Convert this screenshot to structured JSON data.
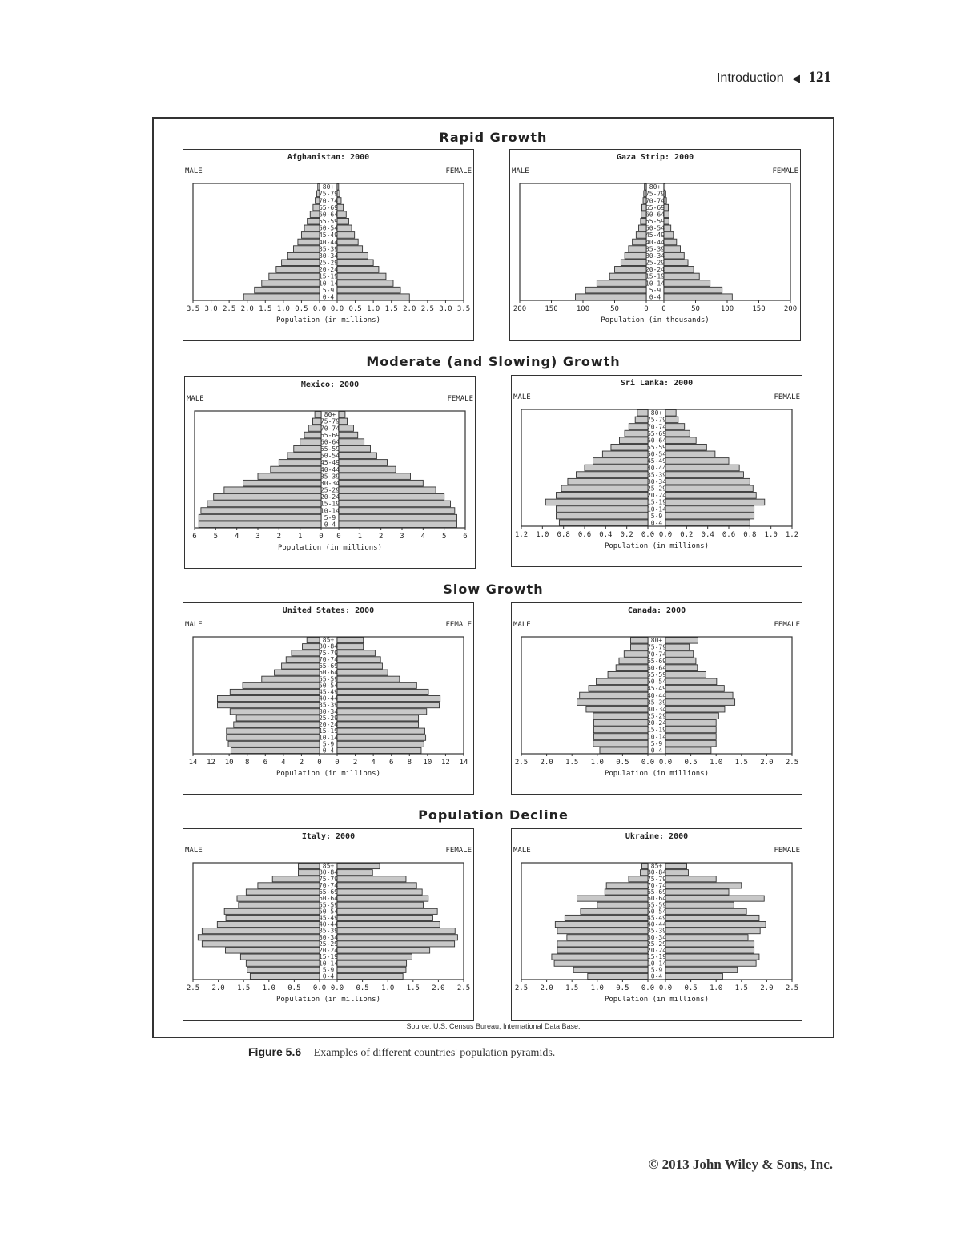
{
  "page": {
    "running_head": "Introduction",
    "page_number": "121",
    "copyright": "© 2013 John Wiley & Sons, Inc."
  },
  "figure": {
    "source": "Source: U.S. Census Bureau, International Data Base.",
    "caption_label": "Figure 5.6",
    "caption_text": "Examples of different countries' population pyramids.",
    "sections": [
      {
        "title": "Rapid Growth"
      },
      {
        "title": "Moderate (and Slowing) Growth"
      },
      {
        "title": "Slow Growth"
      },
      {
        "title": "Population Decline"
      }
    ],
    "male_label": "MALE",
    "female_label": "FEMALE"
  },
  "chart_data": [
    {
      "type": "bar",
      "title": "Afghanistan: 2000",
      "section": "Rapid Growth",
      "xlabel": "Population (in millions)",
      "xlim": [
        0,
        3.5
      ],
      "ticks": [
        "3.5",
        "3.0",
        "2.5",
        "2.0",
        "1.5",
        "1.0",
        "0.5",
        "0.0"
      ],
      "categories": [
        "0-4",
        "5-9",
        "10-14",
        "15-19",
        "20-24",
        "25-29",
        "30-34",
        "35-39",
        "40-44",
        "45-49",
        "50-54",
        "55-59",
        "60-64",
        "65-69",
        "70-74",
        "75-79",
        "80+"
      ],
      "series": [
        {
          "name": "Male",
          "values": [
            2.1,
            1.8,
            1.6,
            1.4,
            1.2,
            1.05,
            0.88,
            0.72,
            0.6,
            0.5,
            0.42,
            0.34,
            0.26,
            0.18,
            0.12,
            0.08,
            0.05
          ]
        },
        {
          "name": "Female",
          "values": [
            2.0,
            1.75,
            1.55,
            1.35,
            1.15,
            1.0,
            0.85,
            0.7,
            0.58,
            0.48,
            0.4,
            0.32,
            0.25,
            0.17,
            0.11,
            0.07,
            0.04
          ]
        }
      ]
    },
    {
      "type": "bar",
      "title": "Gaza Strip: 2000",
      "section": "Rapid Growth",
      "xlabel": "Population (in thousands)",
      "xlim": [
        0,
        200
      ],
      "ticks": [
        "200",
        "150",
        "100",
        "50",
        "0"
      ],
      "categories": [
        "0-4",
        "5-9",
        "10-14",
        "15-19",
        "20-24",
        "25-29",
        "30-34",
        "35-39",
        "40-44",
        "45-49",
        "50-54",
        "55-59",
        "60-64",
        "65-69",
        "70-74",
        "75-79",
        "80+"
      ],
      "series": [
        {
          "name": "Male",
          "values": [
            112,
            96,
            78,
            58,
            50,
            40,
            34,
            28,
            22,
            16,
            12,
            9,
            8,
            7,
            5,
            4,
            3
          ]
        },
        {
          "name": "Female",
          "values": [
            108,
            92,
            73,
            56,
            47,
            38,
            32,
            26,
            20,
            15,
            11,
            8,
            8,
            7,
            4,
            3,
            2
          ]
        }
      ]
    },
    {
      "type": "bar",
      "title": "Mexico: 2000",
      "section": "Moderate (and Slowing) Growth",
      "xlabel": "Population (in millions)",
      "xlim": [
        0,
        6
      ],
      "ticks": [
        "6",
        "5",
        "4",
        "3",
        "2",
        "1",
        "0"
      ],
      "categories": [
        "0-4",
        "5-9",
        "10-14",
        "15-19",
        "20-24",
        "25-29",
        "30-34",
        "35-39",
        "40-44",
        "45-49",
        "50-54",
        "55-59",
        "60-64",
        "65-69",
        "70-74",
        "75-79",
        "80+"
      ],
      "series": [
        {
          "name": "Male",
          "values": [
            5.8,
            5.8,
            5.7,
            5.4,
            5.1,
            4.6,
            3.7,
            3.0,
            2.4,
            2.0,
            1.6,
            1.3,
            1.0,
            0.8,
            0.6,
            0.4,
            0.3
          ]
        },
        {
          "name": "Female",
          "values": [
            5.6,
            5.6,
            5.5,
            5.3,
            5.0,
            4.6,
            4.0,
            3.4,
            2.7,
            2.3,
            1.8,
            1.5,
            1.2,
            0.9,
            0.7,
            0.4,
            0.3
          ]
        }
      ]
    },
    {
      "type": "bar",
      "title": "Sri Lanka: 2000",
      "section": "Moderate (and Slowing) Growth",
      "xlabel": "Population (in millions)",
      "xlim": [
        0,
        1.2
      ],
      "ticks": [
        "1.2",
        "1.0",
        "0.8",
        "0.6",
        "0.4",
        "0.2",
        "0.0"
      ],
      "categories": [
        "0-4",
        "5-9",
        "10-14",
        "15-19",
        "20-24",
        "25-29",
        "30-34",
        "35-39",
        "40-44",
        "45-49",
        "50-54",
        "55-59",
        "60-64",
        "65-69",
        "70-74",
        "75-79",
        "80+"
      ],
      "series": [
        {
          "name": "Male",
          "values": [
            0.84,
            0.87,
            0.87,
            0.97,
            0.87,
            0.82,
            0.76,
            0.68,
            0.6,
            0.52,
            0.43,
            0.35,
            0.27,
            0.22,
            0.18,
            0.12,
            0.1
          ]
        },
        {
          "name": "Female",
          "values": [
            0.8,
            0.84,
            0.84,
            0.94,
            0.86,
            0.83,
            0.8,
            0.74,
            0.7,
            0.6,
            0.47,
            0.39,
            0.29,
            0.23,
            0.18,
            0.12,
            0.1
          ]
        }
      ]
    },
    {
      "type": "bar",
      "title": "United States: 2000",
      "section": "Slow Growth",
      "xlabel": "Population (in millions)",
      "xlim": [
        0,
        14
      ],
      "ticks": [
        "14",
        "12",
        "10",
        "8",
        "6",
        "4",
        "2",
        "0"
      ],
      "categories": [
        "0-4",
        "5-9",
        "10-14",
        "15-19",
        "20-24",
        "25-29",
        "30-34",
        "35-39",
        "40-44",
        "45-49",
        "50-54",
        "55-59",
        "60-64",
        "65-69",
        "70-74",
        "75-79",
        "80-84",
        "85+"
      ],
      "series": [
        {
          "name": "Male",
          "values": [
            9.8,
            10.1,
            10.3,
            10.3,
            9.5,
            9.2,
            9.9,
            11.3,
            11.3,
            9.9,
            8.5,
            6.4,
            5.0,
            4.2,
            3.7,
            3.1,
            1.9,
            1.4
          ]
        },
        {
          "name": "Female",
          "values": [
            9.3,
            9.6,
            9.8,
            9.7,
            9.0,
            9.0,
            9.9,
            11.3,
            11.4,
            10.1,
            8.8,
            6.9,
            5.6,
            5.0,
            4.8,
            4.2,
            2.9,
            2.9
          ]
        }
      ]
    },
    {
      "type": "bar",
      "title": "Canada: 2000",
      "section": "Slow Growth",
      "xlabel": "Population (in millions)",
      "xlim": [
        0,
        2.5
      ],
      "ticks": [
        "2.5",
        "2.0",
        "1.5",
        "1.0",
        "0.5",
        "0.0"
      ],
      "categories": [
        "0-4",
        "5-9",
        "10-14",
        "15-19",
        "20-24",
        "25-29",
        "30-34",
        "35-39",
        "40-44",
        "45-49",
        "50-54",
        "55-59",
        "60-64",
        "65-69",
        "70-74",
        "75-79",
        "80+"
      ],
      "series": [
        {
          "name": "Male",
          "values": [
            0.95,
            1.08,
            1.07,
            1.07,
            1.07,
            1.08,
            1.22,
            1.4,
            1.35,
            1.17,
            1.02,
            0.79,
            0.63,
            0.57,
            0.47,
            0.34,
            0.34
          ]
        },
        {
          "name": "Female",
          "values": [
            0.9,
            1.0,
            1.0,
            1.0,
            1.0,
            1.05,
            1.17,
            1.37,
            1.33,
            1.16,
            1.01,
            0.8,
            0.63,
            0.6,
            0.55,
            0.47,
            0.64
          ]
        }
      ]
    },
    {
      "type": "bar",
      "title": "Italy: 2000",
      "section": "Population Decline",
      "xlabel": "Population (in millions)",
      "xlim": [
        0,
        2.5
      ],
      "ticks": [
        "2.5",
        "2.0",
        "1.5",
        "1.0",
        "0.5",
        "0.0"
      ],
      "categories": [
        "0-4",
        "5-9",
        "10-14",
        "15-19",
        "20-24",
        "25-29",
        "30-34",
        "35-39",
        "40-44",
        "45-49",
        "50-54",
        "55-59",
        "60-64",
        "65-69",
        "70-74",
        "75-79",
        "80-84",
        "85+"
      ],
      "series": [
        {
          "name": "Male",
          "values": [
            1.37,
            1.43,
            1.45,
            1.56,
            1.86,
            2.32,
            2.4,
            2.32,
            2.02,
            1.85,
            1.88,
            1.6,
            1.63,
            1.45,
            1.22,
            0.93,
            0.42,
            0.42
          ]
        },
        {
          "name": "Female",
          "values": [
            1.3,
            1.36,
            1.37,
            1.48,
            1.83,
            2.32,
            2.38,
            2.33,
            2.03,
            1.89,
            1.98,
            1.7,
            1.8,
            1.68,
            1.57,
            1.36,
            0.7,
            0.84
          ]
        }
      ]
    },
    {
      "type": "bar",
      "title": "Ukraine: 2000",
      "section": "Population Decline",
      "xlabel": "Population (in millions)",
      "xlim": [
        0,
        2.5
      ],
      "ticks": [
        "2.5",
        "2.0",
        "1.5",
        "1.0",
        "0.5",
        "0.0"
      ],
      "categories": [
        "0-4",
        "5-9",
        "10-14",
        "15-19",
        "20-24",
        "25-29",
        "30-34",
        "35-39",
        "40-44",
        "45-49",
        "50-54",
        "55-59",
        "60-64",
        "65-69",
        "70-74",
        "75-79",
        "80-84",
        "85+"
      ],
      "series": [
        {
          "name": "Male",
          "values": [
            1.19,
            1.47,
            1.85,
            1.9,
            1.79,
            1.79,
            1.6,
            1.79,
            1.83,
            1.64,
            1.33,
            1.0,
            1.4,
            0.85,
            0.82,
            0.38,
            0.15,
            0.12
          ]
        },
        {
          "name": "Female",
          "values": [
            1.13,
            1.42,
            1.79,
            1.85,
            1.75,
            1.75,
            1.63,
            1.87,
            1.98,
            1.85,
            1.6,
            1.35,
            1.95,
            1.25,
            1.5,
            1.0,
            0.45,
            0.42
          ]
        }
      ]
    }
  ]
}
